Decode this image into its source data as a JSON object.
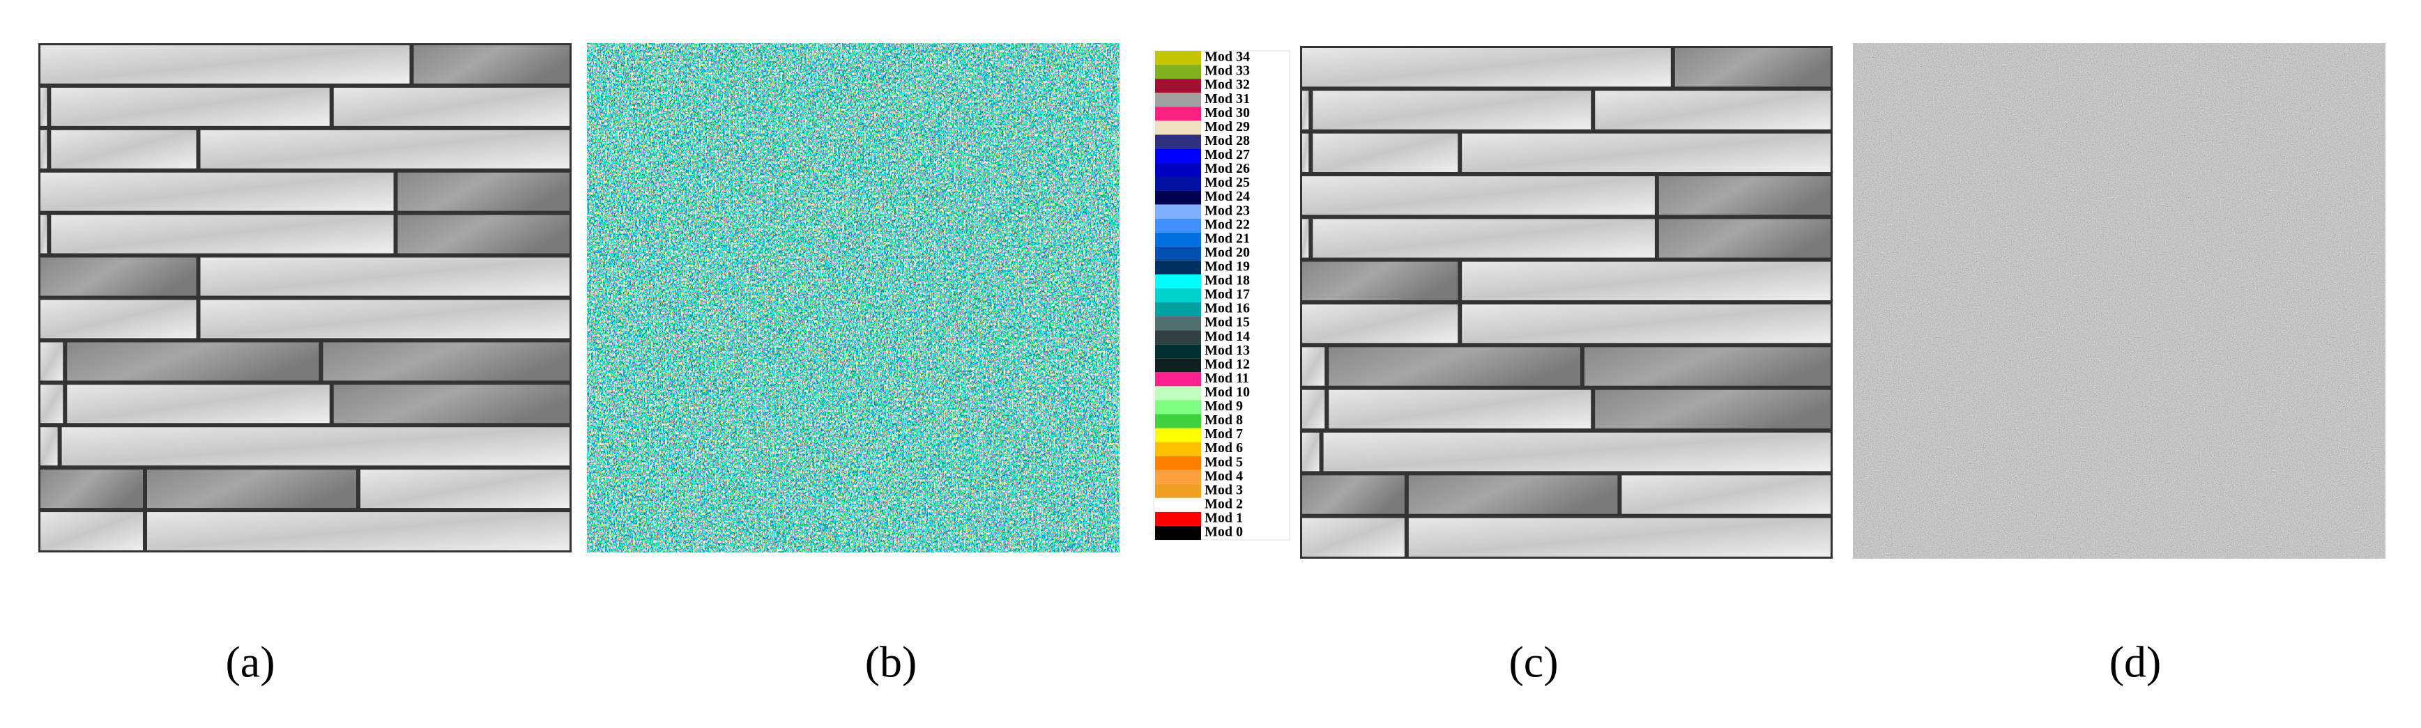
{
  "panels": [
    {
      "label": "(a)"
    },
    {
      "label": "(b)"
    },
    {
      "label": "(c)"
    },
    {
      "label": "(d)"
    }
  ],
  "legend": {
    "items": [
      {
        "name": "Mod 34",
        "color": "#c4c400"
      },
      {
        "name": "Mod 33",
        "color": "#80b020"
      },
      {
        "name": "Mod 32",
        "color": "#a01030"
      },
      {
        "name": "Mod 31",
        "color": "#a0a0a0"
      },
      {
        "name": "Mod 30",
        "color": "#ff2080"
      },
      {
        "name": "Mod 29",
        "color": "#f0e0c0"
      },
      {
        "name": "Mod 28",
        "color": "#303080"
      },
      {
        "name": "Mod 27",
        "color": "#0000ff"
      },
      {
        "name": "Mod 26",
        "color": "#0000c0"
      },
      {
        "name": "Mod 25",
        "color": "#0010a0"
      },
      {
        "name": "Mod 24",
        "color": "#000050"
      },
      {
        "name": "Mod 23",
        "color": "#80b0ff"
      },
      {
        "name": "Mod 22",
        "color": "#4090ff"
      },
      {
        "name": "Mod 21",
        "color": "#0070e0"
      },
      {
        "name": "Mod 20",
        "color": "#0050b0"
      },
      {
        "name": "Mod 19",
        "color": "#003060"
      },
      {
        "name": "Mod 18",
        "color": "#00ffff"
      },
      {
        "name": "Mod 17",
        "color": "#00d0d0"
      },
      {
        "name": "Mod 16",
        "color": "#00a0a0"
      },
      {
        "name": "Mod 15",
        "color": "#507070"
      },
      {
        "name": "Mod 14",
        "color": "#304040"
      },
      {
        "name": "Mod 13",
        "color": "#003030"
      },
      {
        "name": "Mod 12",
        "color": "#102020"
      },
      {
        "name": "Mod 11",
        "color": "#ff2090"
      },
      {
        "name": "Mod 10",
        "color": "#c0ffc0"
      },
      {
        "name": "Mod 9",
        "color": "#80ff80"
      },
      {
        "name": "Mod 8",
        "color": "#40d040"
      },
      {
        "name": "Mod 7",
        "color": "#ffff00"
      },
      {
        "name": "Mod 6",
        "color": "#ffc000"
      },
      {
        "name": "Mod 5",
        "color": "#ff8000"
      },
      {
        "name": "Mod 4",
        "color": "#ffa040"
      },
      {
        "name": "Mod 3",
        "color": "#f0a020"
      },
      {
        "name": "Mod 2",
        "color": "#ffffff"
      },
      {
        "name": "Mod 1",
        "color": "#ff0000"
      },
      {
        "name": "Mod 0",
        "color": "#000000"
      }
    ]
  }
}
